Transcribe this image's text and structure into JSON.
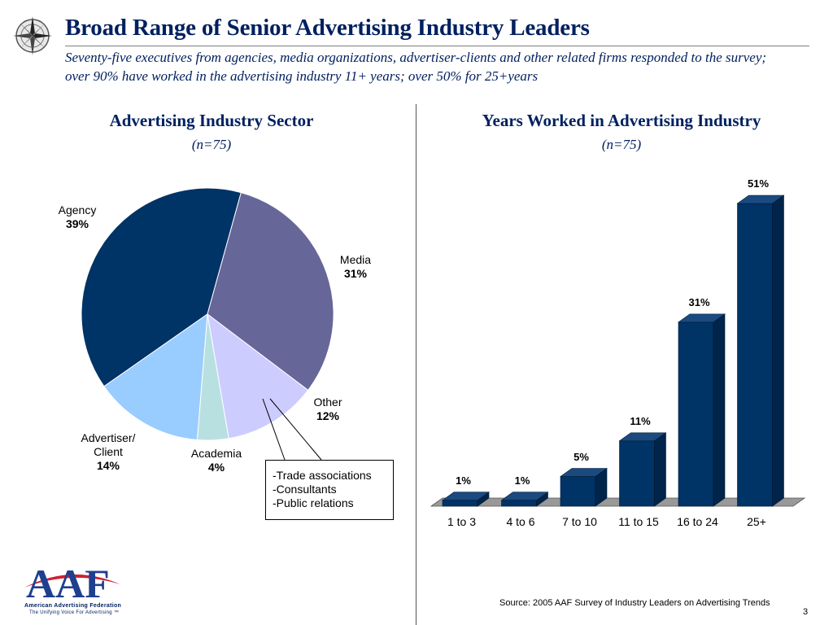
{
  "header": {
    "title": "Broad Range of Senior Advertising Industry Leaders",
    "subtitle_line1": "Seventy-five executives from agencies, media organizations, advertiser-clients and other related firms responded to the survey;",
    "subtitle_line2": "over 90% have worked in the advertising industry 11+ years; over 50% for 25+years"
  },
  "chart_data": [
    {
      "type": "pie",
      "title": "Advertising Industry Sector",
      "subtitle": "(n=75)",
      "slices": [
        {
          "label": "Agency",
          "value": 39,
          "value_label": "39%",
          "color": "#003366"
        },
        {
          "label": "Media",
          "value": 31,
          "value_label": "31%",
          "color": "#666699"
        },
        {
          "label": "Other",
          "value": 12,
          "value_label": "12%",
          "color": "#CCCCFF"
        },
        {
          "label": "Academia",
          "value": 4,
          "value_label": "4%",
          "color": "#B9E0E0"
        },
        {
          "label": "Advertiser/ Client",
          "label_line1": "Advertiser/",
          "label_line2": "Client",
          "value": 14,
          "value_label": "14%",
          "color": "#99CCFF"
        }
      ],
      "other_note": [
        "-Trade associations",
        "-Consultants",
        "-Public relations"
      ]
    },
    {
      "type": "bar",
      "title": "Years Worked in Advertising Industry",
      "subtitle": "(n=75)",
      "categories": [
        "1 to 3",
        "4 to 6",
        "7 to 10",
        "11 to 15",
        "16 to 24",
        "25+"
      ],
      "values": [
        1,
        1,
        5,
        11,
        31,
        51
      ],
      "value_labels": [
        "1%",
        "1%",
        "5%",
        "11%",
        "31%",
        "51%"
      ],
      "color": "#003366",
      "style": "3d"
    }
  ],
  "footer": {
    "source": "Source: 2005 AAF Survey of Industry Leaders on Advertising Trends",
    "page_number": "3",
    "logo_text": "AAF",
    "logo_line1": "American Advertising Federation",
    "logo_line2": "The Unifying Voice For Advertising ™"
  }
}
